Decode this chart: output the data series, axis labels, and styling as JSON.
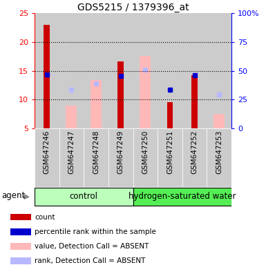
{
  "title": "GDS5215 / 1379396_at",
  "samples": [
    "GSM647246",
    "GSM647247",
    "GSM647248",
    "GSM647249",
    "GSM647250",
    "GSM647251",
    "GSM647252",
    "GSM647253"
  ],
  "count_values": [
    23.0,
    null,
    null,
    16.6,
    null,
    9.6,
    14.3,
    null
  ],
  "rank_values": [
    14.4,
    null,
    null,
    14.1,
    null,
    11.7,
    14.3,
    null
  ],
  "absent_value_values": [
    null,
    9.0,
    13.4,
    null,
    17.6,
    null,
    null,
    7.5
  ],
  "absent_rank_values": [
    null,
    11.7,
    12.8,
    null,
    15.2,
    null,
    null,
    10.9
  ],
  "ylim": [
    5,
    25
  ],
  "y2lim": [
    0,
    100
  ],
  "yticks": [
    5,
    10,
    15,
    20,
    25
  ],
  "y2ticks": [
    0,
    25,
    50,
    75,
    100
  ],
  "y2ticklabels": [
    "0",
    "25",
    "50",
    "75",
    "100%"
  ],
  "color_count": "#cc0000",
  "color_rank": "#0000cc",
  "color_absent_value": "#ffb8b8",
  "color_absent_rank": "#b8b8ff",
  "color_group_control": "#bbffbb",
  "color_group_hydrogen": "#55ee55",
  "color_col_bg": "#cccccc",
  "legend_items": [
    {
      "label": "count",
      "color": "#cc0000"
    },
    {
      "label": "percentile rank within the sample",
      "color": "#0000cc"
    },
    {
      "label": "value, Detection Call = ABSENT",
      "color": "#ffb8b8"
    },
    {
      "label": "rank, Detection Call = ABSENT",
      "color": "#b8b8ff"
    }
  ]
}
